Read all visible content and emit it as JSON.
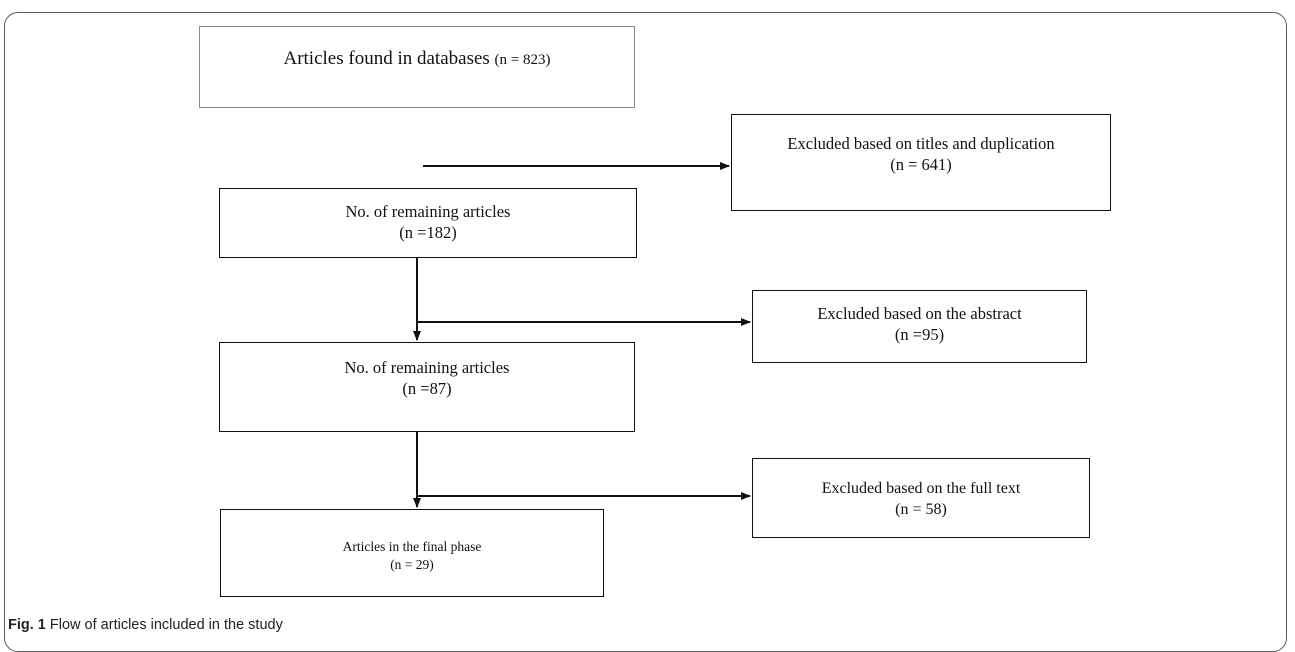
{
  "boxes": {
    "start": {
      "text": "Articles found in databases",
      "count": "(n = 823)"
    },
    "remaining_1": {
      "line1": "No. of remaining articles",
      "line2": "(n =182)"
    },
    "excluded_1": {
      "line1": "Excluded based on titles and duplication",
      "line2": "(n = 641)"
    },
    "remaining_2": {
      "line1": "No. of remaining articles",
      "line2": "(n =87)"
    },
    "excluded_2": {
      "line1": "Excluded based on the abstract",
      "line2": "(n =95)"
    },
    "excluded_3": {
      "line1": "Excluded based on the full text",
      "line2": "(n = 58)"
    },
    "final": {
      "line1": "Articles in the final phase",
      "line2": "(n = 29)"
    }
  },
  "caption": {
    "label": "Fig. 1",
    "text": "Flow of articles included in the study"
  }
}
